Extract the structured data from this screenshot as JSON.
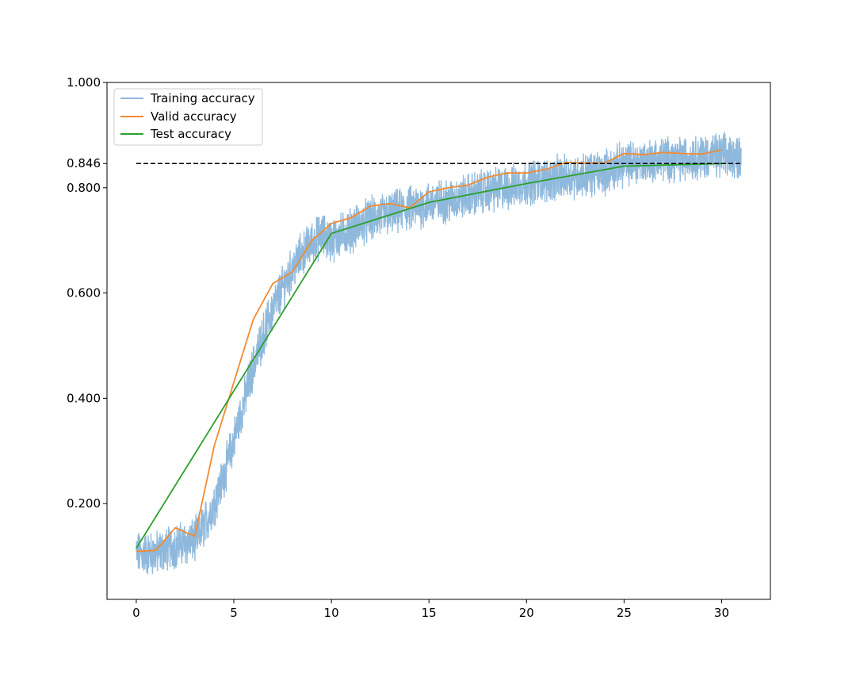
{
  "chart_data": {
    "type": "line",
    "title": "",
    "xlabel": "",
    "ylabel": "",
    "xlim": [
      -1.5,
      32.5
    ],
    "ylim": [
      0.018,
      1.0
    ],
    "x_ticks": [
      0,
      5,
      10,
      15,
      20,
      25,
      30
    ],
    "x_tick_labels": [
      "0",
      "5",
      "10",
      "15",
      "20",
      "25",
      "30"
    ],
    "y_ticks": [
      0.2,
      0.4,
      0.6,
      0.8,
      0.846,
      1.0
    ],
    "y_tick_labels": [
      "0.200",
      "0.400",
      "0.600",
      "0.800",
      "0.846",
      "1.000"
    ],
    "grid": false,
    "legend_position": "top-left",
    "reference_line": {
      "y": 0.846,
      "x_range": [
        0,
        31
      ],
      "style": "dashed",
      "color": "#000000"
    },
    "series": [
      {
        "name": "Training accuracy",
        "color": "#8fb9dc",
        "kind": "noisy",
        "trend_x": [
          0,
          1,
          2,
          3,
          3.5,
          4,
          4.5,
          5,
          5.5,
          6,
          6.5,
          7,
          7.5,
          8,
          8.5,
          9,
          9.5,
          10,
          11,
          12,
          13,
          14,
          15,
          16,
          17,
          18,
          19,
          20,
          21,
          22,
          23,
          24,
          25,
          26,
          27,
          28,
          29,
          30,
          31
        ],
        "trend_y": [
          0.105,
          0.105,
          0.12,
          0.13,
          0.16,
          0.2,
          0.255,
          0.32,
          0.39,
          0.46,
          0.52,
          0.57,
          0.61,
          0.645,
          0.675,
          0.695,
          0.71,
          0.7,
          0.72,
          0.74,
          0.75,
          0.76,
          0.77,
          0.775,
          0.785,
          0.795,
          0.8,
          0.81,
          0.815,
          0.82,
          0.825,
          0.83,
          0.845,
          0.85,
          0.855,
          0.855,
          0.86,
          0.86,
          0.86
        ],
        "noise_amplitude": 0.035,
        "y_range": [
          0.06,
          0.93
        ]
      },
      {
        "name": "Valid accuracy",
        "color": "#f28b30",
        "x": [
          0,
          1,
          2,
          3,
          4,
          5,
          6,
          7,
          8,
          9,
          10,
          11,
          12,
          13,
          14,
          15,
          16,
          17,
          18,
          19,
          20,
          21,
          22,
          23,
          24,
          25,
          26,
          27,
          28,
          29,
          30
        ],
        "values": [
          0.109,
          0.111,
          0.154,
          0.138,
          0.31,
          0.43,
          0.55,
          0.618,
          0.64,
          0.7,
          0.732,
          0.743,
          0.765,
          0.77,
          0.762,
          0.792,
          0.8,
          0.805,
          0.82,
          0.828,
          0.828,
          0.835,
          0.848,
          0.847,
          0.847,
          0.865,
          0.863,
          0.867,
          0.865,
          0.864,
          0.872
        ]
      },
      {
        "name": "Test accuracy",
        "color": "#2ca02c",
        "x": [
          0,
          10,
          15,
          20,
          25,
          30
        ],
        "values": [
          0.115,
          0.713,
          0.772,
          0.808,
          0.841,
          0.846
        ]
      }
    ]
  }
}
